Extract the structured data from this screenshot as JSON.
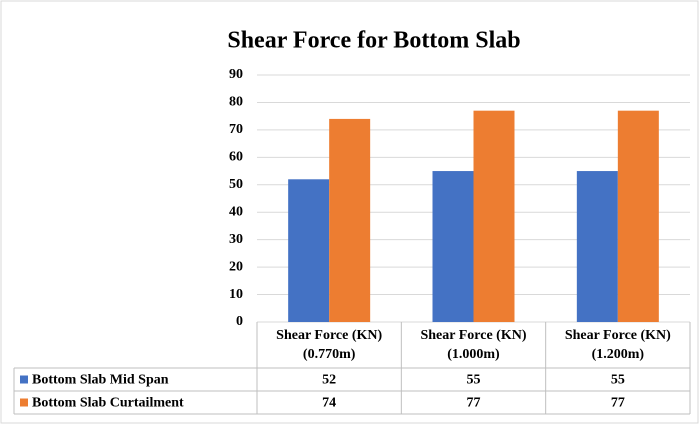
{
  "chart_data": {
    "type": "bar",
    "title": "Shear Force for Bottom Slab",
    "categories": [
      "Shear Force (KN) (0.770m)",
      "Shear Force (KN) (1.000m)",
      "Shear Force (KN) (1.200m)"
    ],
    "series": [
      {
        "name": "Bottom Slab Mid Span",
        "color": "#4472c4",
        "values": [
          52,
          55,
          55
        ]
      },
      {
        "name": "Bottom Slab Curtailment",
        "color": "#ed7d31",
        "values": [
          74,
          77,
          77
        ]
      }
    ],
    "ylim": [
      0,
      90
    ],
    "yticks": [
      0,
      10,
      20,
      30,
      40,
      50,
      60,
      70,
      80,
      90
    ],
    "grid": true,
    "data_table": true
  }
}
